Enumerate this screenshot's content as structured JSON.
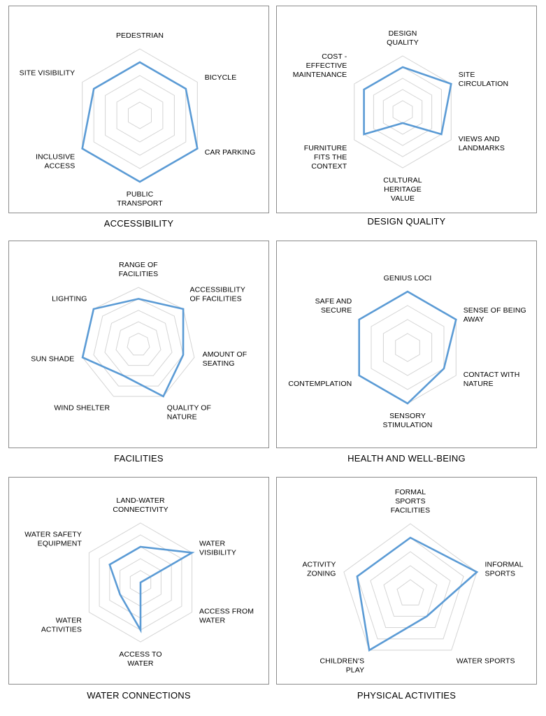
{
  "figure": {
    "chart_data": [
      {
        "type": "radar",
        "title": "ACCESSIBILITY",
        "categories": [
          "PEDESTRIAN",
          "BICYCLE",
          "CAR PARKING",
          "PUBLIC TRANSPORT",
          "INCLUSIVE ACCESS",
          "SITE VISIBILITY"
        ],
        "values": [
          4,
          4,
          5,
          5,
          5,
          4
        ],
        "rmax": 5,
        "grid_levels": 5,
        "series_color": "#5b9bd5"
      },
      {
        "type": "radar",
        "title": "DESIGN QUALITY",
        "categories": [
          "DESIGN QUALITY",
          "SITE CIRCULATION",
          "VIEWS AND LANDMARKS",
          "CULTURAL HERITAGE VALUE",
          "FURNITURE FITS THE CONTEXT",
          "COST - EFFECTIVE MAINTENANCE"
        ],
        "values": [
          4,
          5,
          4,
          1,
          4,
          4
        ],
        "rmax": 5,
        "grid_levels": 5,
        "series_color": "#5b9bd5"
      },
      {
        "type": "radar",
        "title": "FACILITIES",
        "categories": [
          "RANGE OF FACILITIES",
          "ACCESSIBILITY OF FACILITIES",
          "AMOUNT OF SEATING",
          "QUALITY OF NATURE",
          "WIND SHELTER",
          "SUN SHADE",
          "LIGHTING"
        ],
        "values": [
          4,
          5,
          4,
          5,
          3,
          5,
          5
        ],
        "rmax": 5,
        "grid_levels": 5,
        "series_color": "#5b9bd5"
      },
      {
        "type": "radar",
        "title": "HEALTH AND WELL-BEING",
        "categories": [
          "GENIUS LOCI",
          "SENSE OF BEING AWAY",
          "CONTACT WITH NATURE",
          "SENSORY STIMULATION",
          "CONTEMPLATION",
          "SAFE AND SECURE"
        ],
        "values": [
          4,
          4,
          3,
          4,
          4,
          4
        ],
        "rmax": 4,
        "grid_levels": 4,
        "series_color": "#5b9bd5"
      },
      {
        "type": "radar",
        "title": "WATER CONNECTIONS",
        "categories": [
          "LAND-WATER CONNECTIVITY",
          "WATER VISIBILITY",
          "ACCESS FROM WATER",
          "ACCESS TO WATER",
          "WATER ACTIVITIES",
          "WATER SAFETY EQUIPMENT"
        ],
        "values": [
          3,
          5,
          0,
          4,
          2,
          3
        ],
        "rmax": 5,
        "grid_levels": 5,
        "series_color": "#5b9bd5"
      },
      {
        "type": "radar",
        "title": "PHYSICAL ACTIVITIES",
        "categories": [
          "FORMAL SPORTS FACILITIES",
          "INFORMAL SPORTS",
          "WATER SPORTS",
          "CHILDREN'S PLAY",
          "ACTIVITY ZONING"
        ],
        "values": [
          4,
          5,
          2,
          5,
          4
        ],
        "rmax": 5,
        "grid_levels": 5,
        "series_color": "#5b9bd5"
      }
    ]
  }
}
